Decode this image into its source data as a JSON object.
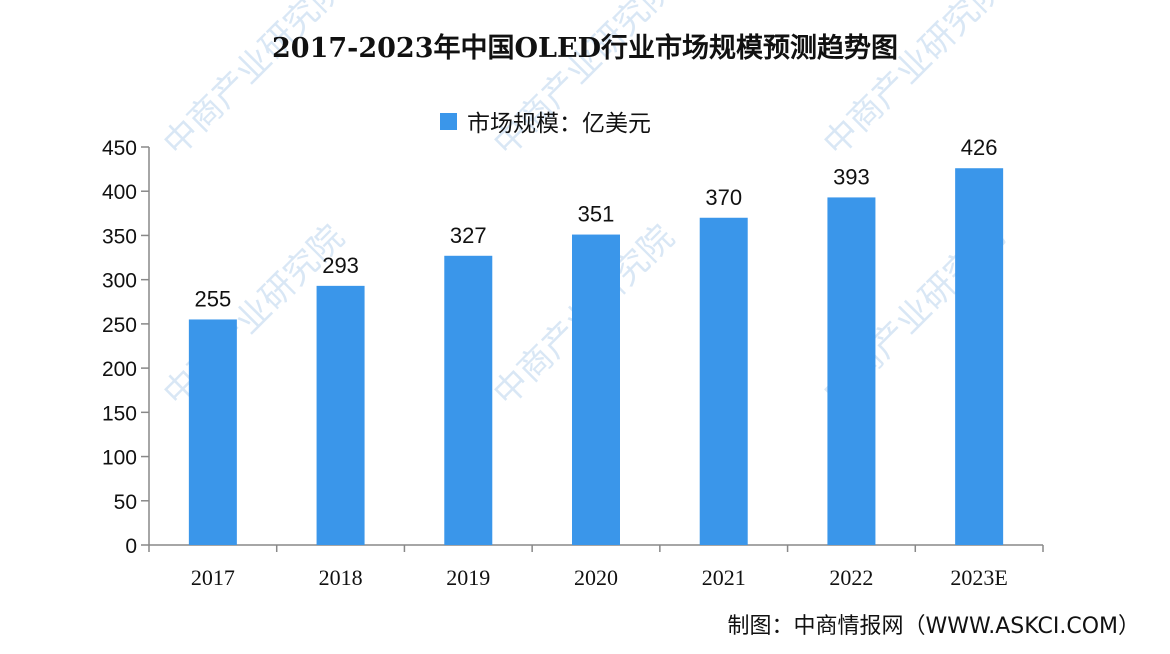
{
  "watermark": "中商产业研究院",
  "footer": "制图：中商情报网（WWW.ASKCI.COM）",
  "chart_data": {
    "type": "bar",
    "title": "2017-2023年中国OLED行业市场规模预测趋势图",
    "categories": [
      "2017",
      "2018",
      "2019",
      "2020",
      "2021",
      "2022",
      "2023E"
    ],
    "series": [
      {
        "name": "市场规模：亿美元",
        "values": [
          255,
          293,
          327,
          351,
          370,
          393,
          426
        ]
      }
    ],
    "xlabel": "",
    "ylabel": "",
    "ylim": [
      0,
      450
    ],
    "yticks": [
      0,
      50,
      100,
      150,
      200,
      250,
      300,
      350,
      400,
      450
    ],
    "grid": false,
    "legend": "top-center",
    "data_labels": true,
    "colors": {
      "bar": "#3a96ea",
      "axis": "#888888"
    }
  }
}
